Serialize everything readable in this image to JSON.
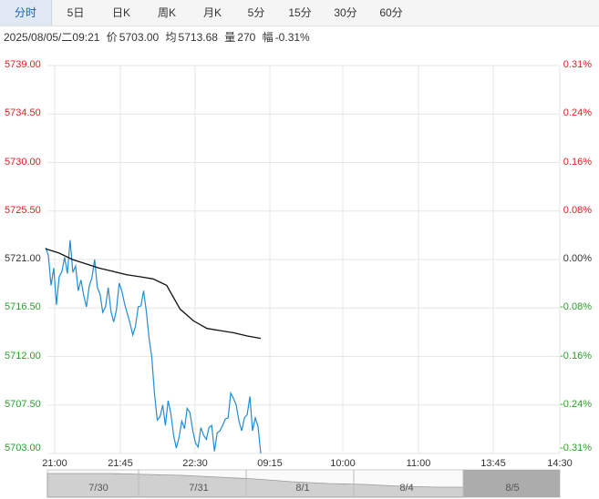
{
  "tabs": [
    {
      "label": "分时",
      "active": true
    },
    {
      "label": "5日",
      "active": false
    },
    {
      "label": "日K",
      "active": false
    },
    {
      "label": "周K",
      "active": false
    },
    {
      "label": "月K",
      "active": false
    },
    {
      "label": "5分",
      "active": false
    },
    {
      "label": "15分",
      "active": false
    },
    {
      "label": "30分",
      "active": false
    },
    {
      "label": "60分",
      "active": false
    }
  ],
  "info": {
    "datetime": "2025/08/05/二09:21",
    "price_label": "价",
    "price": "5703.00",
    "avg_label": "均",
    "avg": "5713.68",
    "volume_label": "量",
    "volume": "270",
    "change_label": "幅",
    "change": "-0.31%"
  },
  "colors": {
    "up": "#e02020",
    "down": "#2aa02a",
    "flat": "#333333",
    "price_line": "#1f8dd6",
    "avg_line": "#111111",
    "grid": "#e6e6e6",
    "nav_fill": "#d0d0d0",
    "nav_highlight": "#9e9e9e"
  },
  "chart_data": {
    "type": "line",
    "y_ticks": [
      "5739.00",
      "5734.50",
      "5730.00",
      "5725.50",
      "5721.00",
      "5716.50",
      "5712.00",
      "5707.50",
      "5703.00"
    ],
    "y_tick_colors": [
      "up",
      "up",
      "up",
      "up",
      "flat",
      "down",
      "down",
      "down",
      "down"
    ],
    "pct_ticks": [
      "0.31%",
      "0.24%",
      "0.16%",
      "0.08%",
      "0.00%",
      "-0.08%",
      "-0.16%",
      "-0.24%",
      "-0.31%"
    ],
    "ylim": [
      5703.0,
      5739.0
    ],
    "x_ticks": [
      "21:00",
      "21:45",
      "22:30",
      "09:15",
      "10:00",
      "11:00",
      "13:45",
      "14:30"
    ],
    "series": [
      {
        "values": [
          5722.1,
          5721.4,
          5718.6,
          5720.2,
          5716.8,
          5719.4,
          5719.9,
          5721.2,
          5719.7,
          5722.8,
          5719.8,
          5720.4,
          5718.1,
          5719.1,
          5717.7,
          5716.6,
          5718.5,
          5719.3,
          5721.0,
          5718.4,
          5717.8,
          5716.1,
          5716.6,
          5718.4,
          5716.2,
          5715.2,
          5716.3,
          5718.8,
          5718.1,
          5716.9,
          5716.0,
          5715.1,
          5714.0,
          5714.8,
          5716.6,
          5716.7,
          5718.1,
          5716.2,
          5713.7,
          5711.9,
          5708.5,
          5706.1,
          5706.4,
          5707.5,
          5705.6,
          5707.9,
          5706.7,
          5704.7,
          5703.5,
          5704.5,
          5706.0,
          5705.3,
          5707.2,
          5706.8,
          5705.2,
          5704.0,
          5703.6,
          5705.4,
          5704.7,
          5704.3,
          5705.4,
          5705.6,
          5703.2,
          5704.9,
          5705.1,
          5705.6,
          5706.2,
          5706.3,
          5708.6,
          5708.1,
          5707.5,
          5706.0,
          5705.1,
          5706.3,
          5706.6,
          5708.3,
          5705.1,
          5706.3,
          5705.5,
          5703.0
        ],
        "x_range": [
          "21:00",
          "09:21"
        ]
      },
      {
        "values": [
          5722.0,
          5721.6,
          5721.0,
          5720.6,
          5720.2,
          5719.9,
          5719.6,
          5719.4,
          5719.2,
          5718.6,
          5716.4,
          5715.3,
          5714.6,
          5714.4,
          5714.2,
          5713.9,
          5713.68
        ],
        "x_range": [
          "21:00",
          "09:21"
        ]
      }
    ],
    "navigator_labels": [
      "7/30",
      "7/31",
      "8/1",
      "8/4",
      "8/5"
    ]
  }
}
